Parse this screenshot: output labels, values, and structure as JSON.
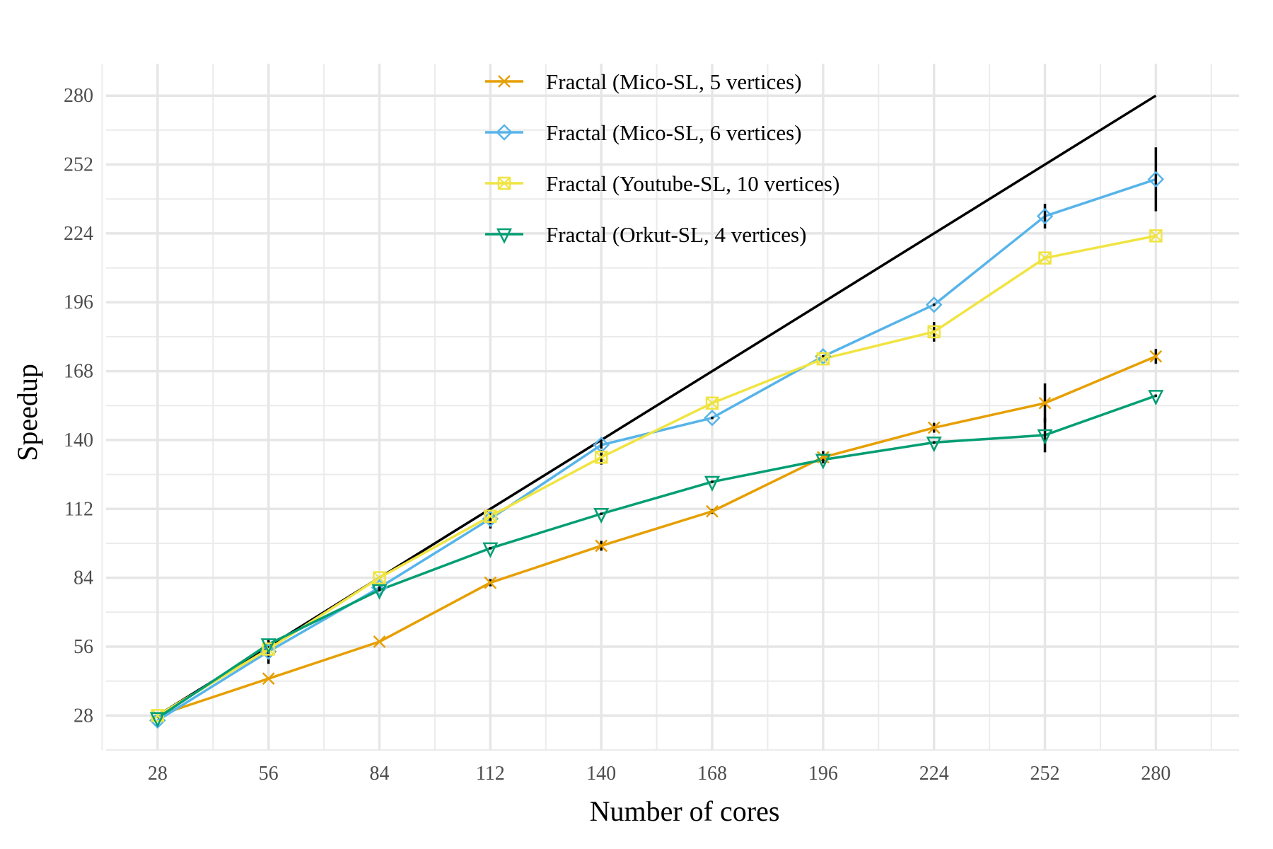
{
  "chart_data": {
    "type": "line",
    "xlabel": "Number of cores",
    "ylabel": "Speedup",
    "x": [
      28,
      56,
      84,
      112,
      140,
      168,
      196,
      224,
      252,
      280
    ],
    "xticks": [
      28,
      56,
      84,
      112,
      140,
      168,
      196,
      224,
      252,
      280
    ],
    "yticks": [
      28,
      56,
      84,
      112,
      140,
      168,
      196,
      224,
      252,
      280
    ],
    "xlim": [
      15,
      301
    ],
    "ylim": [
      14,
      293
    ],
    "grid": true,
    "legend_position": "top-center",
    "ideal_line": {
      "x": [
        28,
        280
      ],
      "y": [
        28,
        280
      ],
      "color": "#000000"
    },
    "series": [
      {
        "name": "Fractal (Mico-SL, 5 vertices)",
        "marker": "x",
        "color": "#E69F00",
        "values": [
          28,
          43,
          58,
          82,
          97,
          111,
          133,
          145,
          155,
          174
        ],
        "errors": [
          0,
          0.5,
          0.5,
          1.5,
          2,
          1,
          2.5,
          2,
          8,
          3
        ]
      },
      {
        "name": "Fractal (Mico-SL, 6 vertices)",
        "marker": "diamond",
        "color": "#56B4E9",
        "values": [
          26,
          54,
          80,
          108,
          138,
          149,
          174,
          195,
          231,
          246
        ],
        "errors": [
          0,
          5,
          0.5,
          4,
          1.5,
          0.5,
          0.5,
          0.5,
          5,
          13
        ]
      },
      {
        "name": "Fractal (Youtube-SL, 10 vertices)",
        "marker": "square",
        "color": "#F0E442",
        "values": [
          28,
          55,
          84,
          109,
          133,
          155,
          173,
          184,
          214,
          223
        ],
        "errors": [
          0,
          1,
          0.5,
          1,
          3,
          0.5,
          0.5,
          4,
          0.5,
          0.5
        ]
      },
      {
        "name": "Fractal (Orkut-SL, 4 vertices)",
        "marker": "triangle-down",
        "color": "#009E73",
        "values": [
          27,
          57,
          79,
          96,
          110,
          123,
          132,
          139,
          142,
          158
        ],
        "errors": [
          0,
          0.5,
          0.5,
          0.5,
          0.5,
          0.5,
          1,
          0.5,
          7,
          0.5
        ]
      }
    ]
  }
}
